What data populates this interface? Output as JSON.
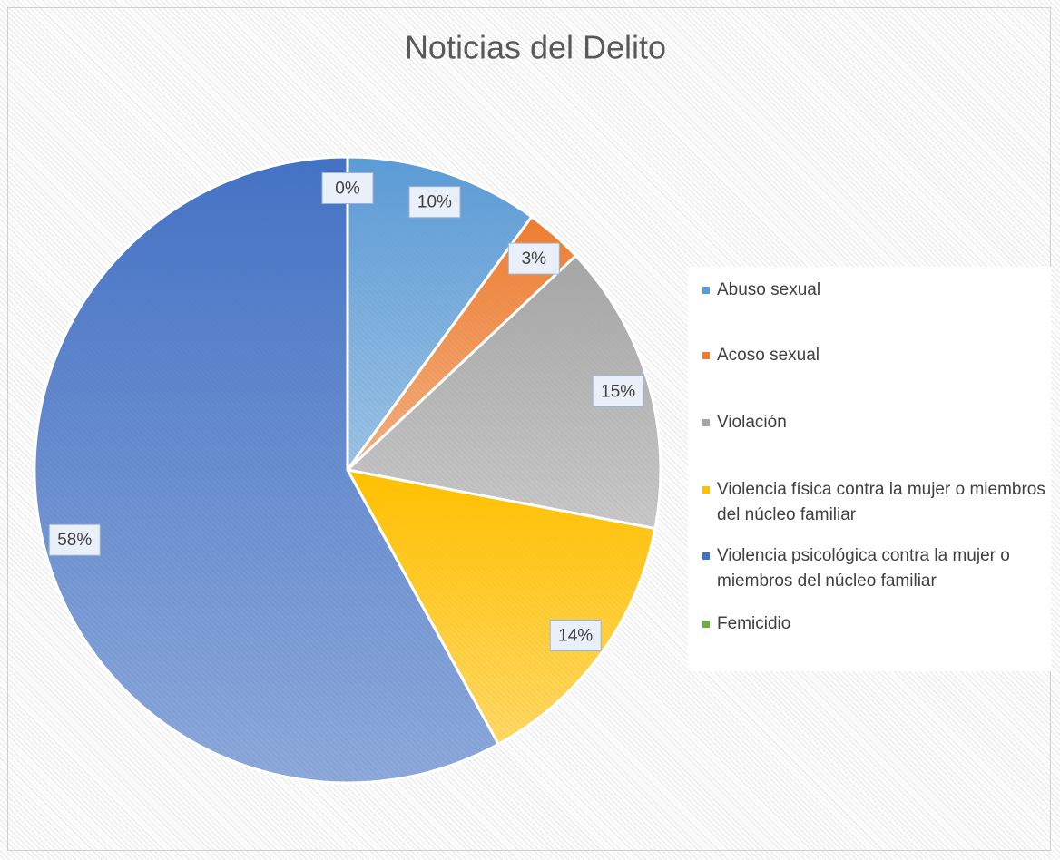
{
  "chart_data": {
    "type": "pie",
    "title": "Noticias del Delito",
    "categories": [
      "Abuso sexual",
      "Acoso sexual",
      "Violación",
      "Violencia física contra la mujer o miembros del núcleo familiar",
      "Violencia psicológica contra la mujer o miembros del núcleo familiar",
      "Femicidio"
    ],
    "values": [
      10,
      3,
      15,
      14,
      58,
      0
    ],
    "value_labels": [
      "10%",
      "3%",
      "15%",
      "14%",
      "58%",
      "0%"
    ],
    "colors": [
      "#5b9bd5",
      "#ed7d31",
      "#a5a5a5",
      "#ffc000",
      "#4472c4",
      "#70ad47"
    ],
    "legend": "right"
  }
}
